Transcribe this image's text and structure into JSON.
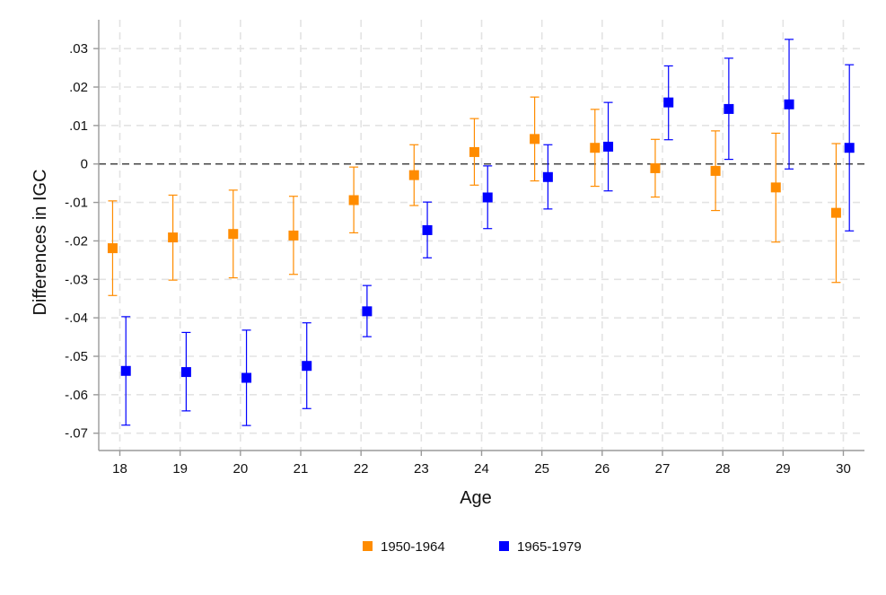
{
  "chart_data": {
    "type": "scatter",
    "subtype": "point-estimates-with-95pct-confidence-intervals",
    "title": "",
    "xlabel": "Age",
    "ylabel": "Differences in IGC",
    "x": [
      18,
      19,
      20,
      21,
      22,
      23,
      24,
      25,
      26,
      27,
      28,
      29,
      30
    ],
    "x_tick_labels": [
      "18",
      "19",
      "20",
      "21",
      "22",
      "23",
      "24",
      "25",
      "26",
      "27",
      "28",
      "29",
      "30"
    ],
    "xlim": [
      17.65,
      30.35
    ],
    "ylim": [
      -0.0745,
      0.0375
    ],
    "y_ticks": [
      0.03,
      0.02,
      0.01,
      0,
      -0.01,
      -0.02,
      -0.03,
      -0.04,
      -0.05,
      -0.06,
      -0.07
    ],
    "y_tick_labels": [
      ".03",
      ".02",
      ".01",
      "0",
      "-.01",
      "-.02",
      "-.03",
      "-.04",
      "-.05",
      "-.06",
      "-.07"
    ],
    "grid": true,
    "reference_line_y": 0,
    "legend_position": "bottom-center",
    "series": [
      {
        "name": "1950-1964",
        "color": "#ff8c00",
        "x_offset": -0.12,
        "values": [
          -0.0219,
          -0.0191,
          -0.0182,
          -0.0186,
          -0.0094,
          -0.0029,
          0.0031,
          0.0065,
          0.0042,
          -0.0011,
          -0.0018,
          -0.0061,
          -0.0127
        ],
        "ci_low": [
          -0.0342,
          -0.0302,
          -0.0296,
          -0.0287,
          -0.0179,
          -0.0108,
          -0.0055,
          -0.0044,
          -0.0058,
          -0.0086,
          -0.0121,
          -0.0203,
          -0.0308
        ],
        "ci_high": [
          -0.0096,
          -0.0081,
          -0.0068,
          -0.0084,
          -0.0008,
          0.005,
          0.0118,
          0.0174,
          0.0142,
          0.0064,
          0.0086,
          0.008,
          0.0053
        ]
      },
      {
        "name": "1965-1979",
        "color": "#0000ff",
        "x_offset": 0.1,
        "values": [
          -0.0538,
          -0.0541,
          -0.0556,
          -0.0525,
          -0.0383,
          -0.0172,
          -0.0087,
          -0.0034,
          0.0045,
          0.016,
          0.0143,
          0.0155,
          0.0042
        ],
        "ci_low": [
          -0.0679,
          -0.0642,
          -0.068,
          -0.0636,
          -0.0449,
          -0.0244,
          -0.0168,
          -0.0117,
          -0.007,
          0.0063,
          0.0012,
          -0.0013,
          -0.0174
        ],
        "ci_high": [
          -0.0397,
          -0.0438,
          -0.0432,
          -0.0413,
          -0.0316,
          -0.0099,
          -0.0005,
          0.005,
          0.016,
          0.0255,
          0.0275,
          0.0324,
          0.0258
        ]
      }
    ]
  }
}
